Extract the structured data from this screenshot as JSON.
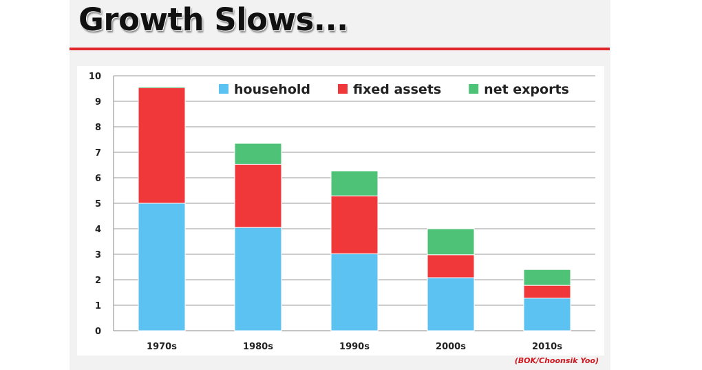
{
  "title": "Growth Slows...",
  "source": "(BOK/Choonsik Yoo)",
  "chart_data": {
    "type": "bar",
    "stacked": true,
    "categories": [
      "1970s",
      "1980s",
      "1990s",
      "2000s",
      "2010s"
    ],
    "series": [
      {
        "name": "household",
        "color": "#5bc2f2",
        "values": [
          5.0,
          4.05,
          3.02,
          2.08,
          1.28
        ]
      },
      {
        "name": "fixed assets",
        "color": "#f0383a",
        "values": [
          4.58,
          2.48,
          2.27,
          0.9,
          0.5
        ]
      },
      {
        "name": "net exports",
        "color": "#4ec276",
        "values": [
          -0.05,
          0.82,
          0.98,
          1.02,
          0.62
        ]
      }
    ],
    "ylim": [
      0,
      10
    ],
    "yticks": [
      0,
      1,
      2,
      3,
      4,
      5,
      6,
      7,
      8,
      9,
      10
    ],
    "grid": true,
    "legend_position": "top"
  }
}
